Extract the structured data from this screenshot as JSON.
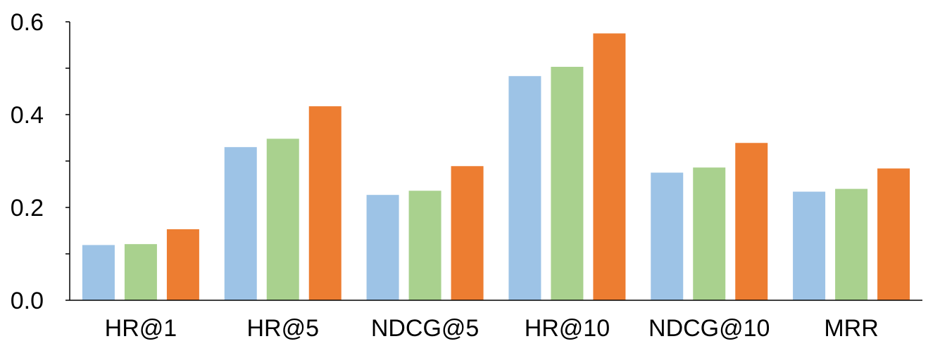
{
  "chart_data": {
    "type": "bar",
    "title": "",
    "xlabel": "",
    "ylabel": "",
    "categories": [
      "HR@1",
      "HR@5",
      "NDCG@5",
      "HR@10",
      "NDCG@10",
      "MRR"
    ],
    "series": [
      {
        "color": "#9DC3E6",
        "values": [
          0.119,
          0.33,
          0.227,
          0.483,
          0.275,
          0.234
        ]
      },
      {
        "color": "#A9D18E",
        "values": [
          0.121,
          0.348,
          0.236,
          0.503,
          0.286,
          0.24
        ]
      },
      {
        "color": "#ED7D31",
        "values": [
          0.153,
          0.418,
          0.289,
          0.575,
          0.339,
          0.284
        ]
      }
    ],
    "ylim": [
      0,
      0.6
    ],
    "y_ticks": [
      "0.0",
      "0.2",
      "0.4",
      "0.6"
    ],
    "y_minor_ticks": [
      0.1,
      0.3,
      0.5
    ],
    "grid": false,
    "legend": "none"
  }
}
